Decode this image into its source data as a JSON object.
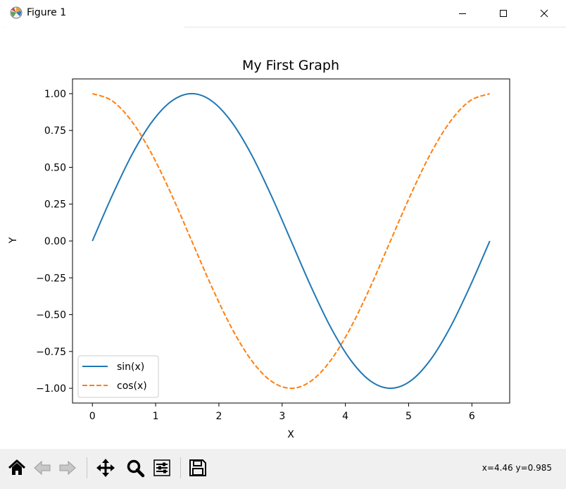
{
  "window": {
    "title": "Figure 1",
    "controls": [
      "minimize",
      "maximize",
      "close"
    ]
  },
  "toolbar": {
    "buttons": [
      {
        "name": "home-icon",
        "label": "Home"
      },
      {
        "name": "back-icon",
        "label": "Back"
      },
      {
        "name": "forward-icon",
        "label": "Forward"
      },
      {
        "name": "pan-icon",
        "label": "Pan"
      },
      {
        "name": "zoom-icon",
        "label": "Zoom"
      },
      {
        "name": "configure-subplots-icon",
        "label": "Configure subplots"
      },
      {
        "name": "save-icon",
        "label": "Save"
      }
    ],
    "coordinates": {
      "x_label": "x=4.46",
      "y_label": "y=0.985"
    }
  },
  "chart_data": {
    "type": "line",
    "title": "My First Graph",
    "xlabel": "X",
    "ylabel": "Y",
    "xlim": [
      -0.3142,
      6.5973
    ],
    "ylim": [
      -1.1,
      1.1
    ],
    "xticks": [
      0,
      1,
      2,
      3,
      4,
      5,
      6
    ],
    "xtick_labels": [
      "0",
      "1",
      "2",
      "3",
      "4",
      "5",
      "6"
    ],
    "yticks": [
      1.0,
      0.75,
      0.5,
      0.25,
      0.0,
      -0.25,
      -0.5,
      -0.75,
      -1.0
    ],
    "ytick_labels": [
      "1.00",
      "0.75",
      "0.50",
      "0.25",
      "0.00",
      "−0.25",
      "−0.50",
      "−0.75",
      "−1.00"
    ],
    "grid": false,
    "legend_position": "lower-left",
    "x": [
      0,
      0.314,
      0.628,
      0.942,
      1.257,
      1.571,
      1.885,
      2.199,
      2.513,
      2.827,
      3.142,
      3.456,
      3.77,
      4.084,
      4.398,
      4.712,
      5.027,
      5.341,
      5.655,
      5.969,
      6.283
    ],
    "series": [
      {
        "name": "sin(x)",
        "color": "#1f77b4",
        "style": "solid",
        "values": [
          0.0,
          0.309,
          0.588,
          0.809,
          0.951,
          1.0,
          0.951,
          0.809,
          0.588,
          0.309,
          0.0,
          -0.309,
          -0.588,
          -0.809,
          -0.951,
          -1.0,
          -0.951,
          -0.809,
          -0.588,
          -0.309,
          0.0
        ]
      },
      {
        "name": "cos(x)",
        "color": "#ff7f0e",
        "style": "dashed",
        "values": [
          1.0,
          0.951,
          0.809,
          0.588,
          0.309,
          0.0,
          -0.309,
          -0.588,
          -0.809,
          -0.951,
          -1.0,
          -0.951,
          -0.809,
          -0.588,
          -0.309,
          0.0,
          0.309,
          0.588,
          0.809,
          0.951,
          1.0
        ]
      }
    ]
  }
}
